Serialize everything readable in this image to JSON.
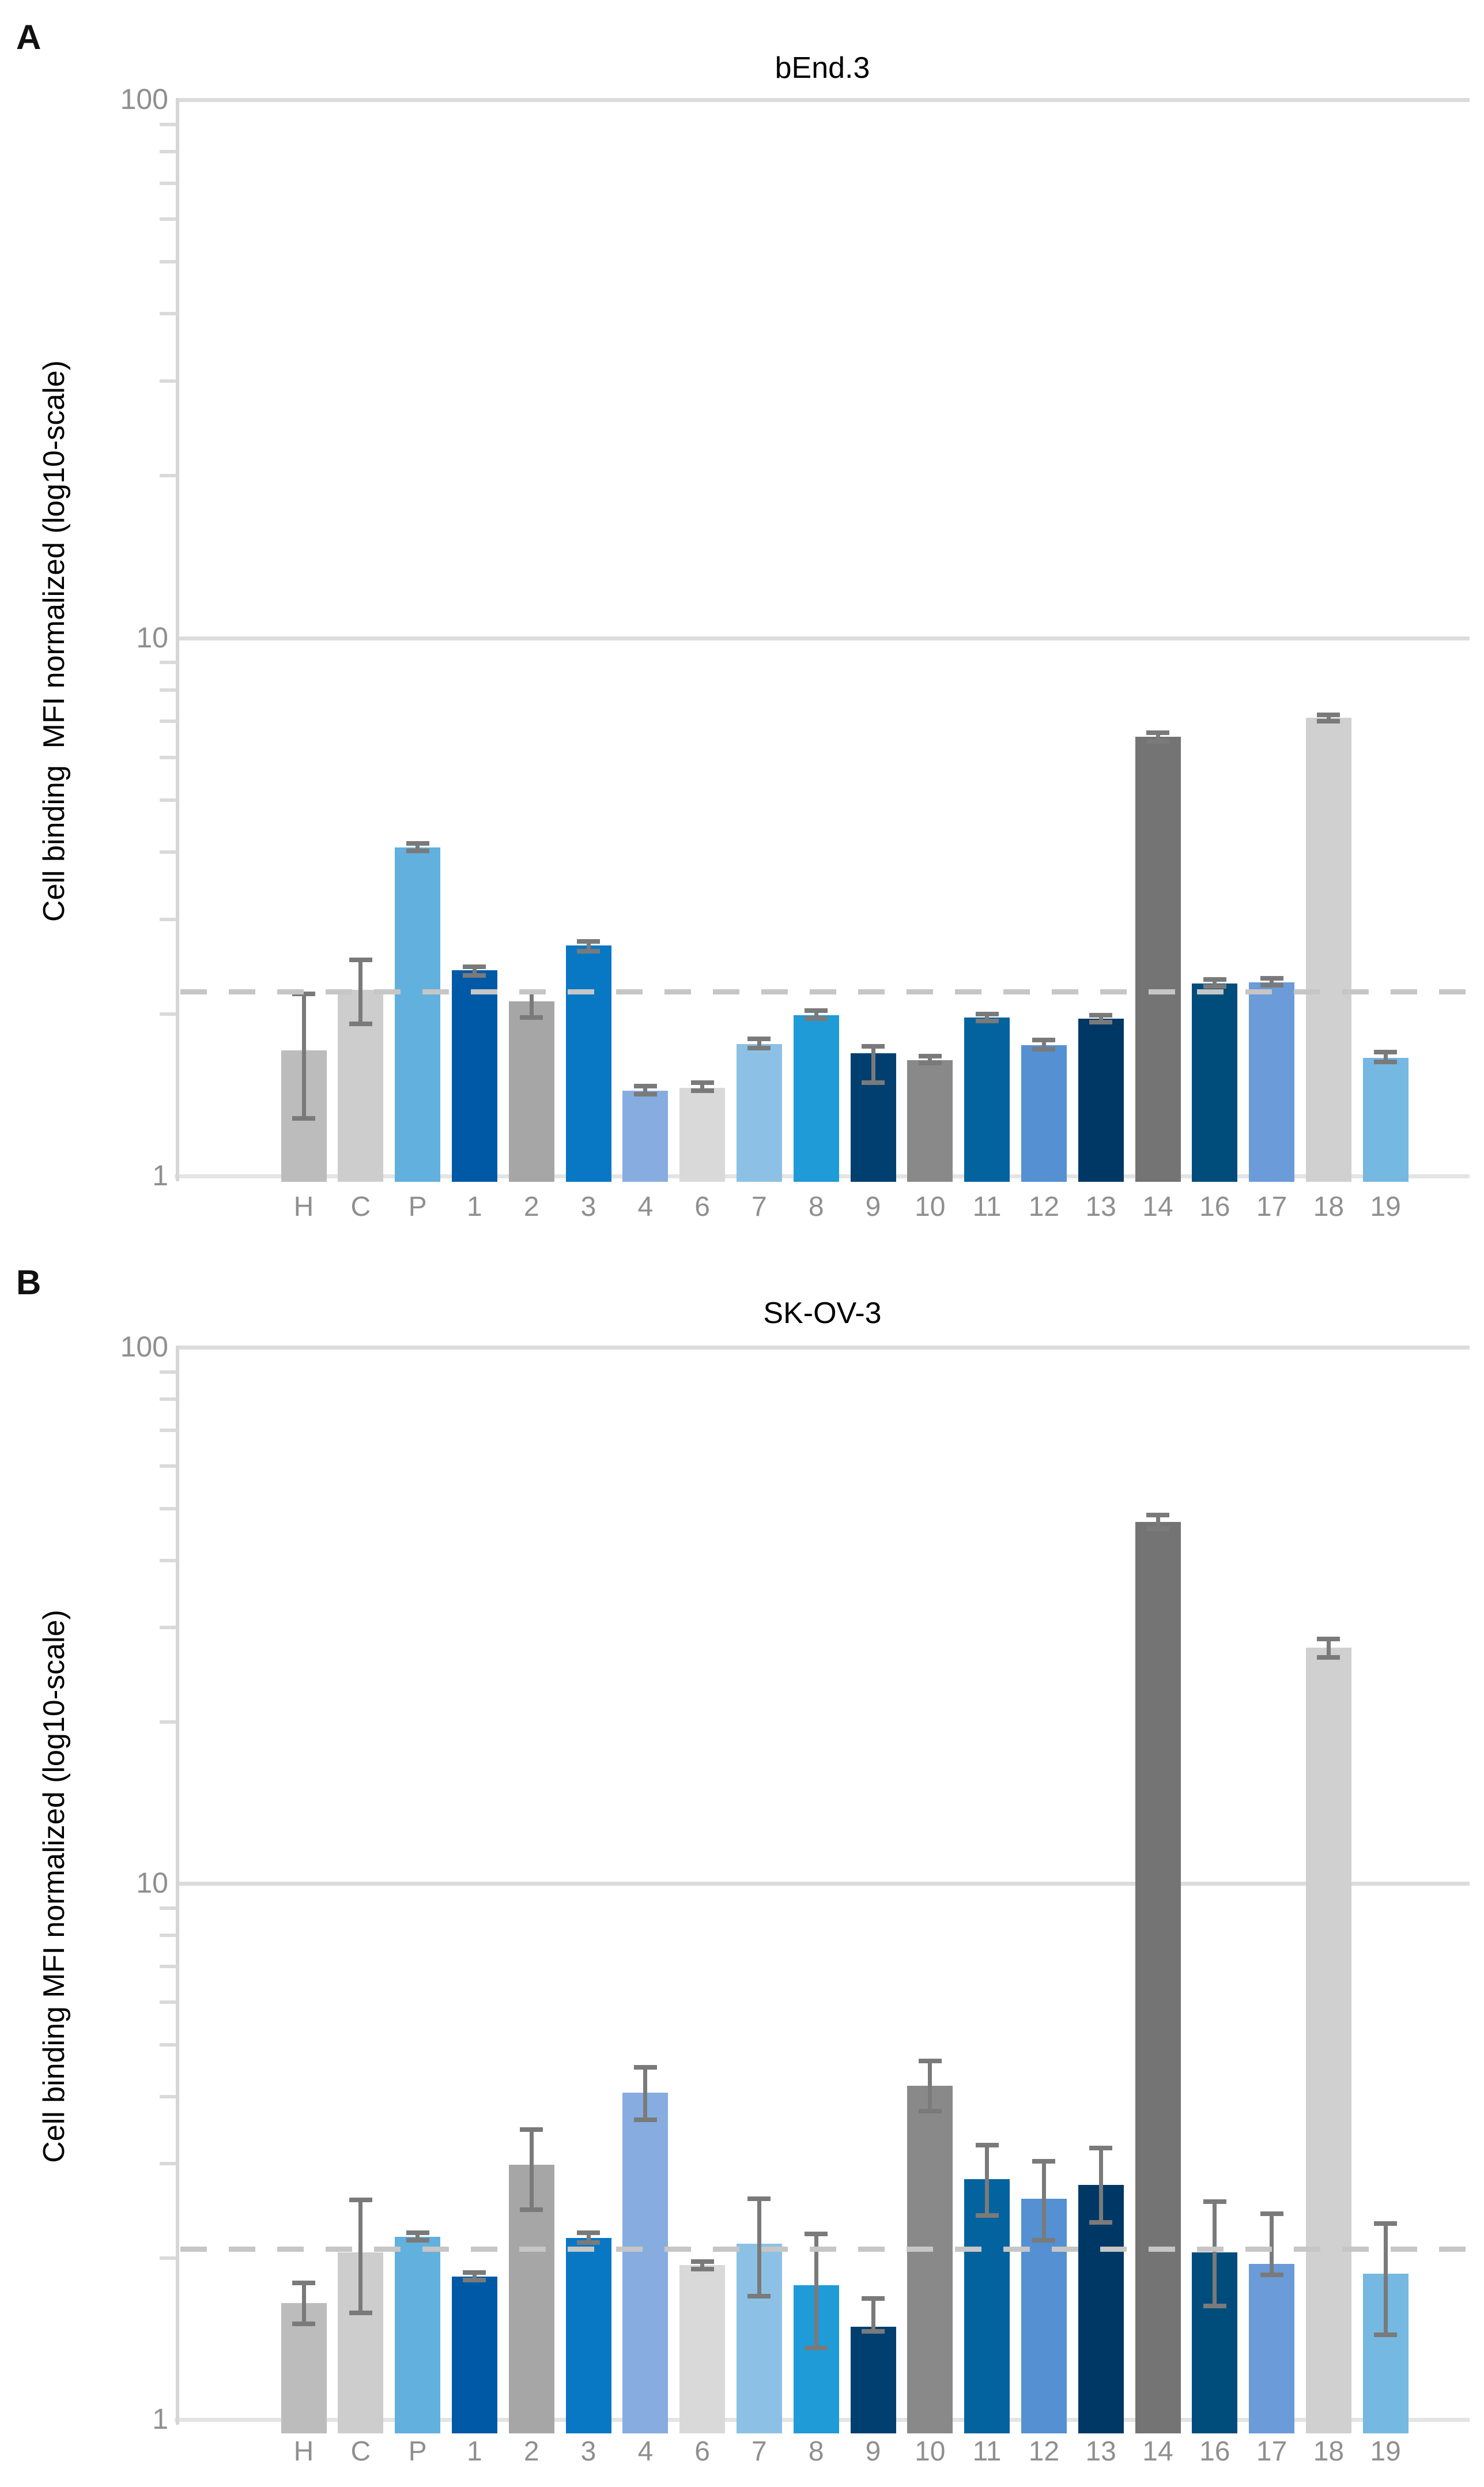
{
  "figure": {
    "background": "#ffffff",
    "style_colors": {
      "grid": "#dcdcdc",
      "axis": "#d6d6d6",
      "baseline": "#e4e4e4",
      "minor_tick": "#dadada",
      "reference_dash": "#c6c6c6",
      "error_bar": "#7a7a7a",
      "tick_text": "#8f8f8f",
      "title_text": "#000000",
      "panel_label_text": "#111111"
    }
  },
  "panels": [
    {
      "panel_label": "A",
      "title": "bEnd.3",
      "ylabel": "Cell binding  MFI normalized (log10-scale)",
      "yticks": [
        {
          "label": "100",
          "value": 100
        },
        {
          "label": "10",
          "value": 10
        },
        {
          "label": "1",
          "value": 1
        }
      ]
    },
    {
      "panel_label": "B",
      "title": "SK-OV-3",
      "ylabel": "Cell binding MFI normalized (log10-scale)",
      "yticks": [
        {
          "label": "100",
          "value": 100
        },
        {
          "label": "10",
          "value": 10
        },
        {
          "label": "1",
          "value": 1
        }
      ]
    }
  ],
  "chart_data": [
    {
      "type": "bar",
      "title": "bEnd.3",
      "ylabel": "Cell binding  MFI normalized (log10-scale)",
      "log_scale": true,
      "ylim": [
        1,
        100
      ],
      "grid": "horizontal-major",
      "legend": "none",
      "reference_line": 2.2,
      "reference_line_style": "dashed-gray",
      "categories": [
        "H",
        "C",
        "P",
        "1",
        "2",
        "3",
        "4",
        "6",
        "7",
        "8",
        "9",
        "10",
        "11",
        "12",
        "13",
        "14",
        "16",
        "17",
        "18",
        "19"
      ],
      "values": [
        1.71,
        2.22,
        4.08,
        2.41,
        2.11,
        2.68,
        1.44,
        1.46,
        1.76,
        1.99,
        1.69,
        1.64,
        1.97,
        1.75,
        1.96,
        6.55,
        2.28,
        2.29,
        7.1,
        1.66
      ],
      "error_low": [
        1.28,
        1.92,
        4.02,
        2.36,
        1.97,
        2.62,
        1.42,
        1.44,
        1.73,
        1.96,
        1.49,
        1.62,
        1.94,
        1.72,
        1.93,
        6.42,
        2.25,
        2.26,
        7.0,
        1.63
      ],
      "error_high": [
        2.18,
        2.52,
        4.15,
        2.45,
        2.2,
        2.73,
        1.47,
        1.49,
        1.8,
        2.03,
        1.74,
        1.67,
        2.0,
        1.79,
        1.99,
        6.67,
        2.32,
        2.33,
        7.2,
        1.7
      ],
      "bar_colors": [
        "#bcbcbd",
        "#cdcdce",
        "#62b0de",
        "#0059a6",
        "#a6a6a7",
        "#0878c5",
        "#87ade0",
        "#d9d9da",
        "#8cc1e5",
        "#1f9bd8",
        "#003f70",
        "#89898a",
        "#02639e",
        "#5590d2",
        "#003865",
        "#747475",
        "#004d7c",
        "#6b9bd8",
        "#d0d0d1",
        "#75b8e2"
      ]
    },
    {
      "type": "bar",
      "title": "SK-OV-3",
      "ylabel": "Cell binding MFI normalized (log10-scale)",
      "log_scale": true,
      "ylim": [
        1,
        100
      ],
      "grid": "horizontal-major",
      "legend": "none",
      "reference_line": 2.08,
      "reference_line_style": "dashed-gray",
      "categories": [
        "H",
        "C",
        "P",
        "1",
        "2",
        "3",
        "4",
        "6",
        "7",
        "8",
        "9",
        "10",
        "11",
        "12",
        "13",
        "14",
        "16",
        "17",
        "18",
        "19"
      ],
      "values": [
        1.65,
        2.05,
        2.19,
        1.85,
        2.99,
        2.18,
        4.07,
        1.94,
        2.13,
        1.78,
        1.49,
        4.19,
        2.81,
        2.58,
        2.74,
        47.2,
        2.05,
        1.95,
        27.5,
        1.87
      ],
      "error_low": [
        1.51,
        1.58,
        2.16,
        1.82,
        2.46,
        2.14,
        3.62,
        1.91,
        1.7,
        1.36,
        1.46,
        3.76,
        2.4,
        2.16,
        2.33,
        45.8,
        1.63,
        1.86,
        26.4,
        1.44
      ],
      "error_high": [
        1.8,
        2.57,
        2.23,
        1.88,
        3.47,
        2.23,
        4.54,
        1.97,
        2.58,
        2.22,
        1.68,
        4.66,
        3.25,
        3.03,
        3.21,
        48.7,
        2.55,
        2.42,
        28.6,
        2.32
      ],
      "bar_colors": [
        "#bcbcbd",
        "#cdcdce",
        "#62b0de",
        "#0059a6",
        "#a6a6a7",
        "#0878c5",
        "#87ade0",
        "#d9d9da",
        "#8cc1e5",
        "#1f9bd8",
        "#003f70",
        "#89898a",
        "#02639e",
        "#5590d2",
        "#003865",
        "#747475",
        "#004d7c",
        "#6b9bd8",
        "#d0d0d1",
        "#75b8e2"
      ]
    }
  ]
}
